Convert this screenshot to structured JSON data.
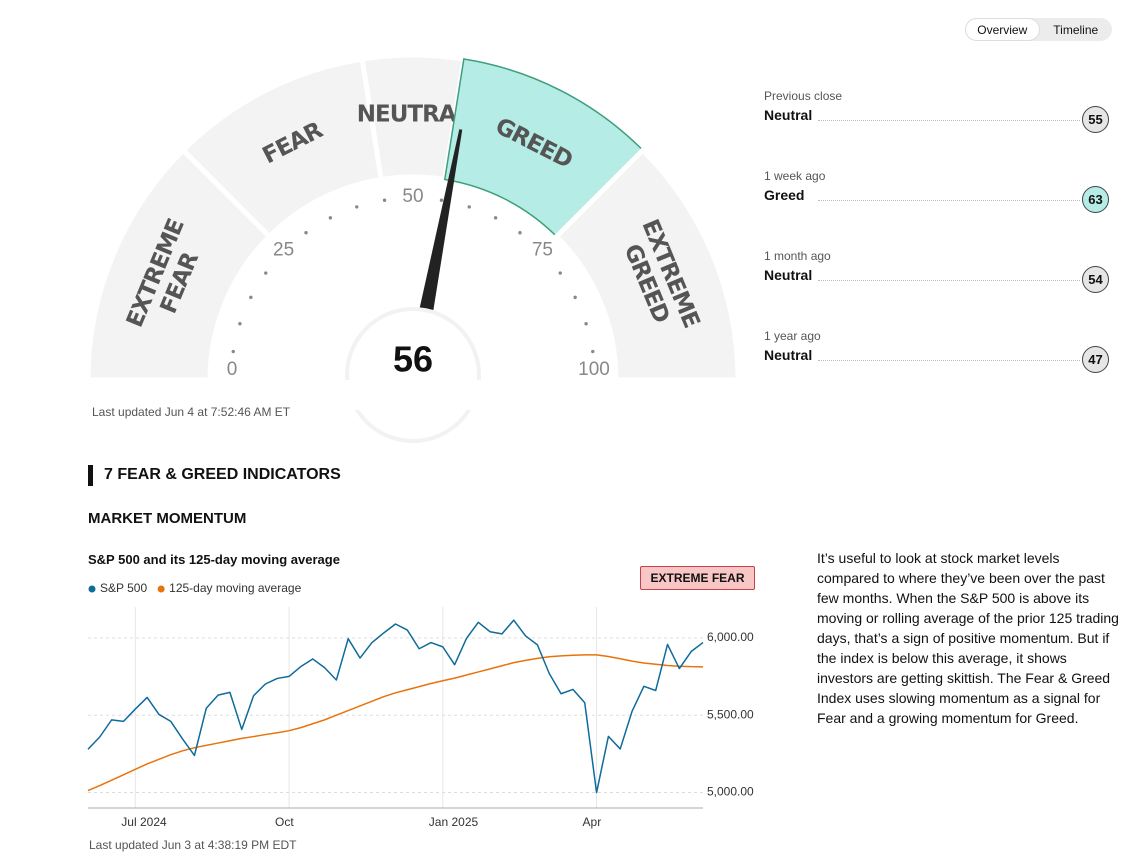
{
  "tabs": [
    "Overview",
    "Timeline"
  ],
  "gauge": {
    "segments": [
      [
        "EXTREME",
        "FEAR"
      ],
      [
        "FEAR"
      ],
      [
        "NEUTRAL"
      ],
      [
        "GREED"
      ],
      [
        "EXTREME",
        "GREED"
      ]
    ],
    "ticks": [
      0,
      25,
      50,
      75,
      100
    ],
    "value": 56,
    "updated": "Last updated Jun 4 at 7:52:46 AM ET"
  },
  "history": [
    {
      "label": "Previous close",
      "rating": "Neutral",
      "value": 55,
      "color": "#e6e6e6"
    },
    {
      "label": "1 week ago",
      "rating": "Greed",
      "value": 63,
      "color": "#b5ece6"
    },
    {
      "label": "1 month ago",
      "rating": "Neutral",
      "value": 54,
      "color": "#e6e6e6"
    },
    {
      "label": "1 year ago",
      "rating": "Neutral",
      "value": 47,
      "color": "#e6e6e6"
    }
  ],
  "section": "7 FEAR & GREED INDICATORS",
  "indicator": "MARKET MOMENTUM",
  "badge": "EXTREME FEAR",
  "description": "It’s useful to look at stock market levels compared to where they’ve been over the past few months. When the S&P 500 is above its moving or rolling average of the prior 125 trading days, that’s a sign of positive momentum. But if the index is below this average, it shows investors are getting skittish. The Fear & Greed Index uses slowing momentum as a signal for Fear and a growing momentum for Greed.",
  "chart_updated": "Last updated Jun 3 at 4:38:19 PM EDT",
  "chart_data": {
    "type": "line",
    "title": "S&P 500 and its 125-day moving average",
    "categories": [
      null,
      null,
      null,
      null,
      "Jul 2024",
      null,
      null,
      null,
      null,
      null,
      null,
      null,
      null,
      null,
      null,
      null,
      null,
      "Oct",
      null,
      null,
      null,
      null,
      null,
      null,
      null,
      null,
      null,
      null,
      null,
      null,
      "Jan 2025",
      null,
      null,
      null,
      null,
      null,
      null,
      null,
      null,
      null,
      null,
      null,
      null,
      "Apr",
      null,
      null,
      null,
      null,
      null,
      null,
      null,
      null,
      null
    ],
    "series": [
      {
        "name": "S&P 500",
        "color": "#0f6b9a",
        "values": [
          5280,
          5360,
          5470,
          5460,
          5540,
          5615,
          5505,
          5460,
          5346,
          5240,
          5545,
          5630,
          5648,
          5408,
          5626,
          5702,
          5738,
          5751,
          5815,
          5864,
          5808,
          5728,
          5995,
          5870,
          5969,
          6032,
          6090,
          6051,
          5930,
          5970,
          5942,
          5827,
          5997,
          6101,
          6040,
          6026,
          6115,
          6013,
          5955,
          5770,
          5639,
          5667,
          5581,
          5000,
          5363,
          5282,
          5525,
          5687,
          5660,
          5958,
          5802,
          5912,
          5970
        ]
      },
      {
        "name": "125-day moving average",
        "color": "#e8730c",
        "values": [
          5013,
          5045,
          5080,
          5115,
          5150,
          5185,
          5215,
          5245,
          5270,
          5290,
          5305,
          5320,
          5335,
          5350,
          5362,
          5375,
          5387,
          5400,
          5420,
          5445,
          5470,
          5500,
          5530,
          5560,
          5590,
          5620,
          5645,
          5665,
          5685,
          5705,
          5723,
          5740,
          5760,
          5780,
          5800,
          5820,
          5840,
          5855,
          5868,
          5878,
          5884,
          5888,
          5890,
          5890,
          5880,
          5865,
          5850,
          5838,
          5830,
          5822,
          5817,
          5814,
          5813
        ]
      }
    ],
    "ylim": [
      4900,
      6200
    ],
    "yticks": [
      {
        "value": 5000,
        "label": "5,000.00"
      },
      {
        "value": 5500,
        "label": "5,500.00"
      },
      {
        "value": 6000,
        "label": "6,000.00"
      }
    ],
    "grid": true
  }
}
